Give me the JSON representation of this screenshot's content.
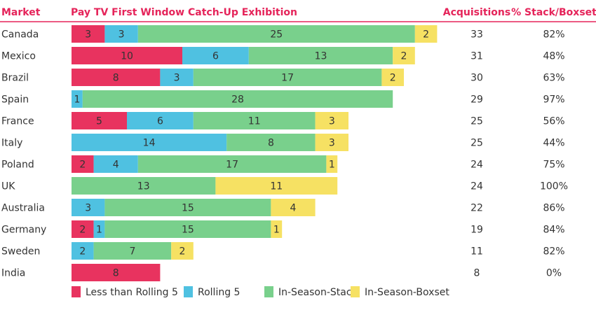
{
  "chart_data": {
    "type": "bar",
    "stacked": true,
    "orientation": "horizontal",
    "headers": {
      "market": "Market",
      "title": "Pay TV First Window Catch-Up Exhibition",
      "acquisitions": "Acquisitions",
      "stack_boxset": "% Stack/Boxset"
    },
    "categories": [
      "Canada",
      "Mexico",
      "Brazil",
      "Spain",
      "France",
      "Italy",
      "Poland",
      "UK",
      "Australia",
      "Germany",
      "Sweden",
      "India"
    ],
    "series": [
      {
        "name": "Less than Rolling 5",
        "color": "#e8335f",
        "values": [
          3,
          10,
          8,
          0,
          5,
          0,
          2,
          0,
          0,
          2,
          0,
          8
        ]
      },
      {
        "name": "Rolling 5",
        "color": "#4fc1e1",
        "values": [
          3,
          6,
          3,
          1,
          6,
          14,
          4,
          0,
          3,
          1,
          2,
          0
        ]
      },
      {
        "name": "In-Season-Stack",
        "color": "#79d08c",
        "values": [
          25,
          13,
          17,
          28,
          11,
          8,
          17,
          13,
          15,
          15,
          7,
          0
        ]
      },
      {
        "name": "In-Season-Boxset",
        "color": "#f6e163",
        "values": [
          2,
          2,
          2,
          0,
          3,
          3,
          1,
          11,
          4,
          1,
          2,
          0
        ]
      }
    ],
    "acquisitions": [
      "33",
      "31",
      "30",
      "29",
      "25",
      "25",
      "24",
      "24",
      "22",
      "19",
      "11",
      "8"
    ],
    "stack_boxset_pct": [
      "82%",
      "48%",
      "63%",
      "97%",
      "56%",
      "44%",
      "75%",
      "100%",
      "86%",
      "84%",
      "82%",
      "0%"
    ],
    "legend_position": "bottom",
    "grid": false,
    "accent_color": "#e5245a"
  }
}
